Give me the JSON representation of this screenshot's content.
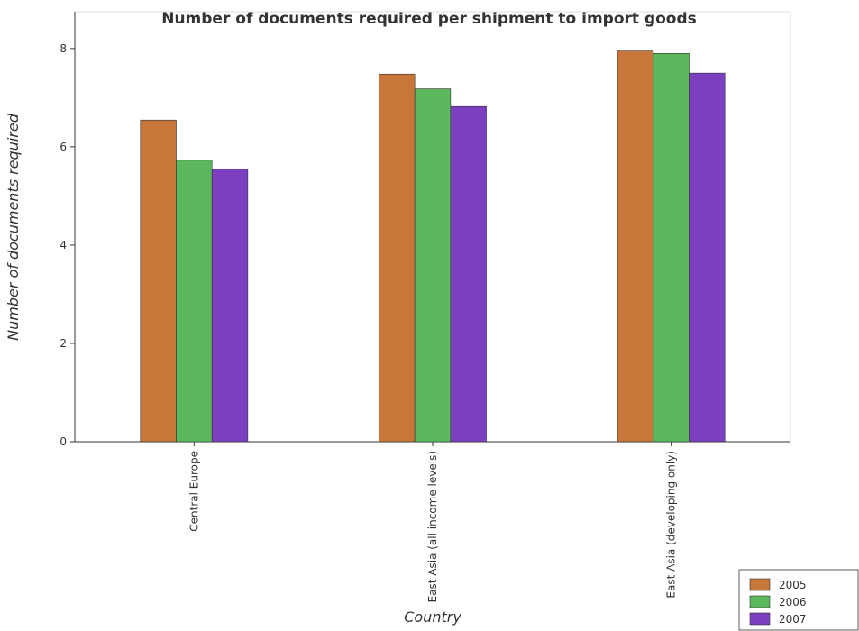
{
  "chart_data": {
    "type": "bar",
    "title": "Number of documents required per shipment to import goods",
    "x_label": "Country",
    "y_label": "Number of documents required",
    "categories": [
      "Central Europe",
      "East Asia (all income levels)",
      "East Asia (developing only)"
    ],
    "series": [
      {
        "name": "2005",
        "color": "#c8763a",
        "values": [
          6.545,
          7.48,
          7.95
        ]
      },
      {
        "name": "2006",
        "color": "#5cb85c",
        "values": [
          5.727,
          7.18,
          7.9
        ]
      },
      {
        "name": "2007",
        "color": "#7b3fc0",
        "values": [
          5.545,
          6.82,
          7.5
        ]
      }
    ],
    "ylim": [
      0,
      8.75
    ],
    "yticks": [
      0,
      2,
      4,
      6,
      8
    ],
    "legend": "lower right"
  }
}
